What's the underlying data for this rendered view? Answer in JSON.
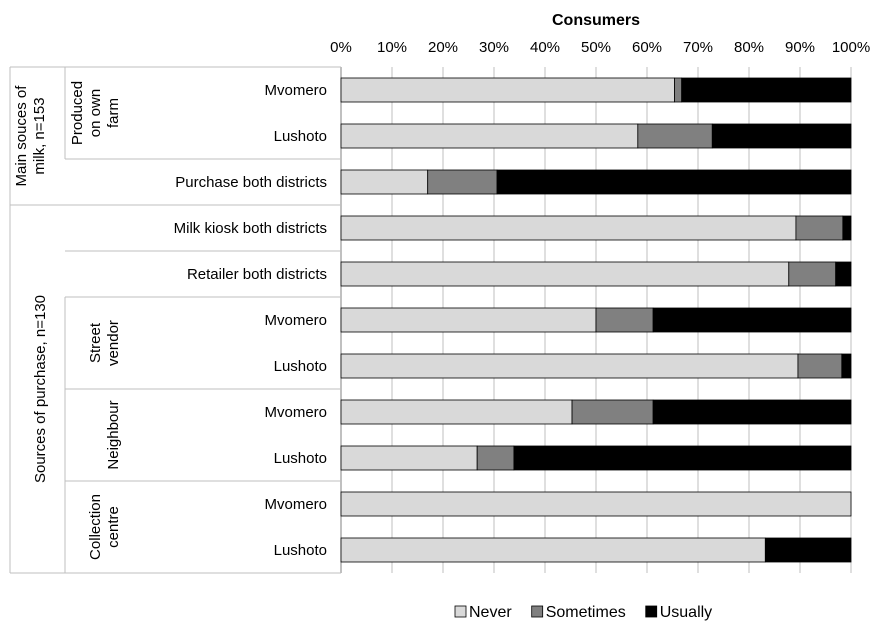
{
  "chart_data": {
    "type": "bar",
    "stacked": true,
    "orientation": "horizontal",
    "title": "Consumers",
    "xlabel": "",
    "ylabel": "",
    "xlim": [
      0,
      100
    ],
    "ticks": [
      "0%",
      "10%",
      "20%",
      "30%",
      "40%",
      "50%",
      "60%",
      "70%",
      "80%",
      "90%",
      "100%"
    ],
    "grid": true,
    "legend_position": "bottom",
    "categories": [
      "Mvomero",
      "Lushoto",
      "Purchase both districts",
      "Milk kiosk both districts",
      "Retailer both districts",
      "Mvomero",
      "Lushoto",
      "Mvomero",
      "Lushoto",
      "Mvomero",
      "Lushoto"
    ],
    "series": [
      {
        "name": "Never",
        "color": "#d9d9d9",
        "values": [
          65.4,
          58.2,
          17.0,
          89.2,
          87.8,
          50.0,
          89.6,
          45.3,
          26.7,
          100.0,
          83.2
        ]
      },
      {
        "name": "Sometimes",
        "color": "#808080",
        "values": [
          1.4,
          14.6,
          13.6,
          9.2,
          9.2,
          11.2,
          8.6,
          15.9,
          7.2,
          0.0,
          0.0
        ]
      },
      {
        "name": "Usually",
        "color": "#000000",
        "values": [
          33.2,
          27.2,
          69.4,
          1.6,
          3.0,
          38.8,
          1.8,
          38.8,
          66.1,
          0.0,
          16.8
        ]
      }
    ],
    "outer_groups": [
      {
        "label": "Main souces of milk, n=153",
        "lines": [
          "Main souces of",
          "milk, n=153"
        ]
      },
      {
        "label": "Sources of purchase, n=130",
        "lines": [
          "Sources of purchase, n=130"
        ]
      }
    ],
    "inner_groups": [
      {
        "label": "Produced on own farm",
        "lines": [
          "Produced",
          "on own",
          "farm"
        ]
      },
      {
        "label": "Street vendor",
        "lines": [
          "Street",
          "vendor"
        ]
      },
      {
        "label": "Neighbour",
        "lines": [
          "Neighbour"
        ]
      },
      {
        "label": "Collection centre",
        "lines": [
          "Collection",
          "centre"
        ]
      }
    ]
  }
}
